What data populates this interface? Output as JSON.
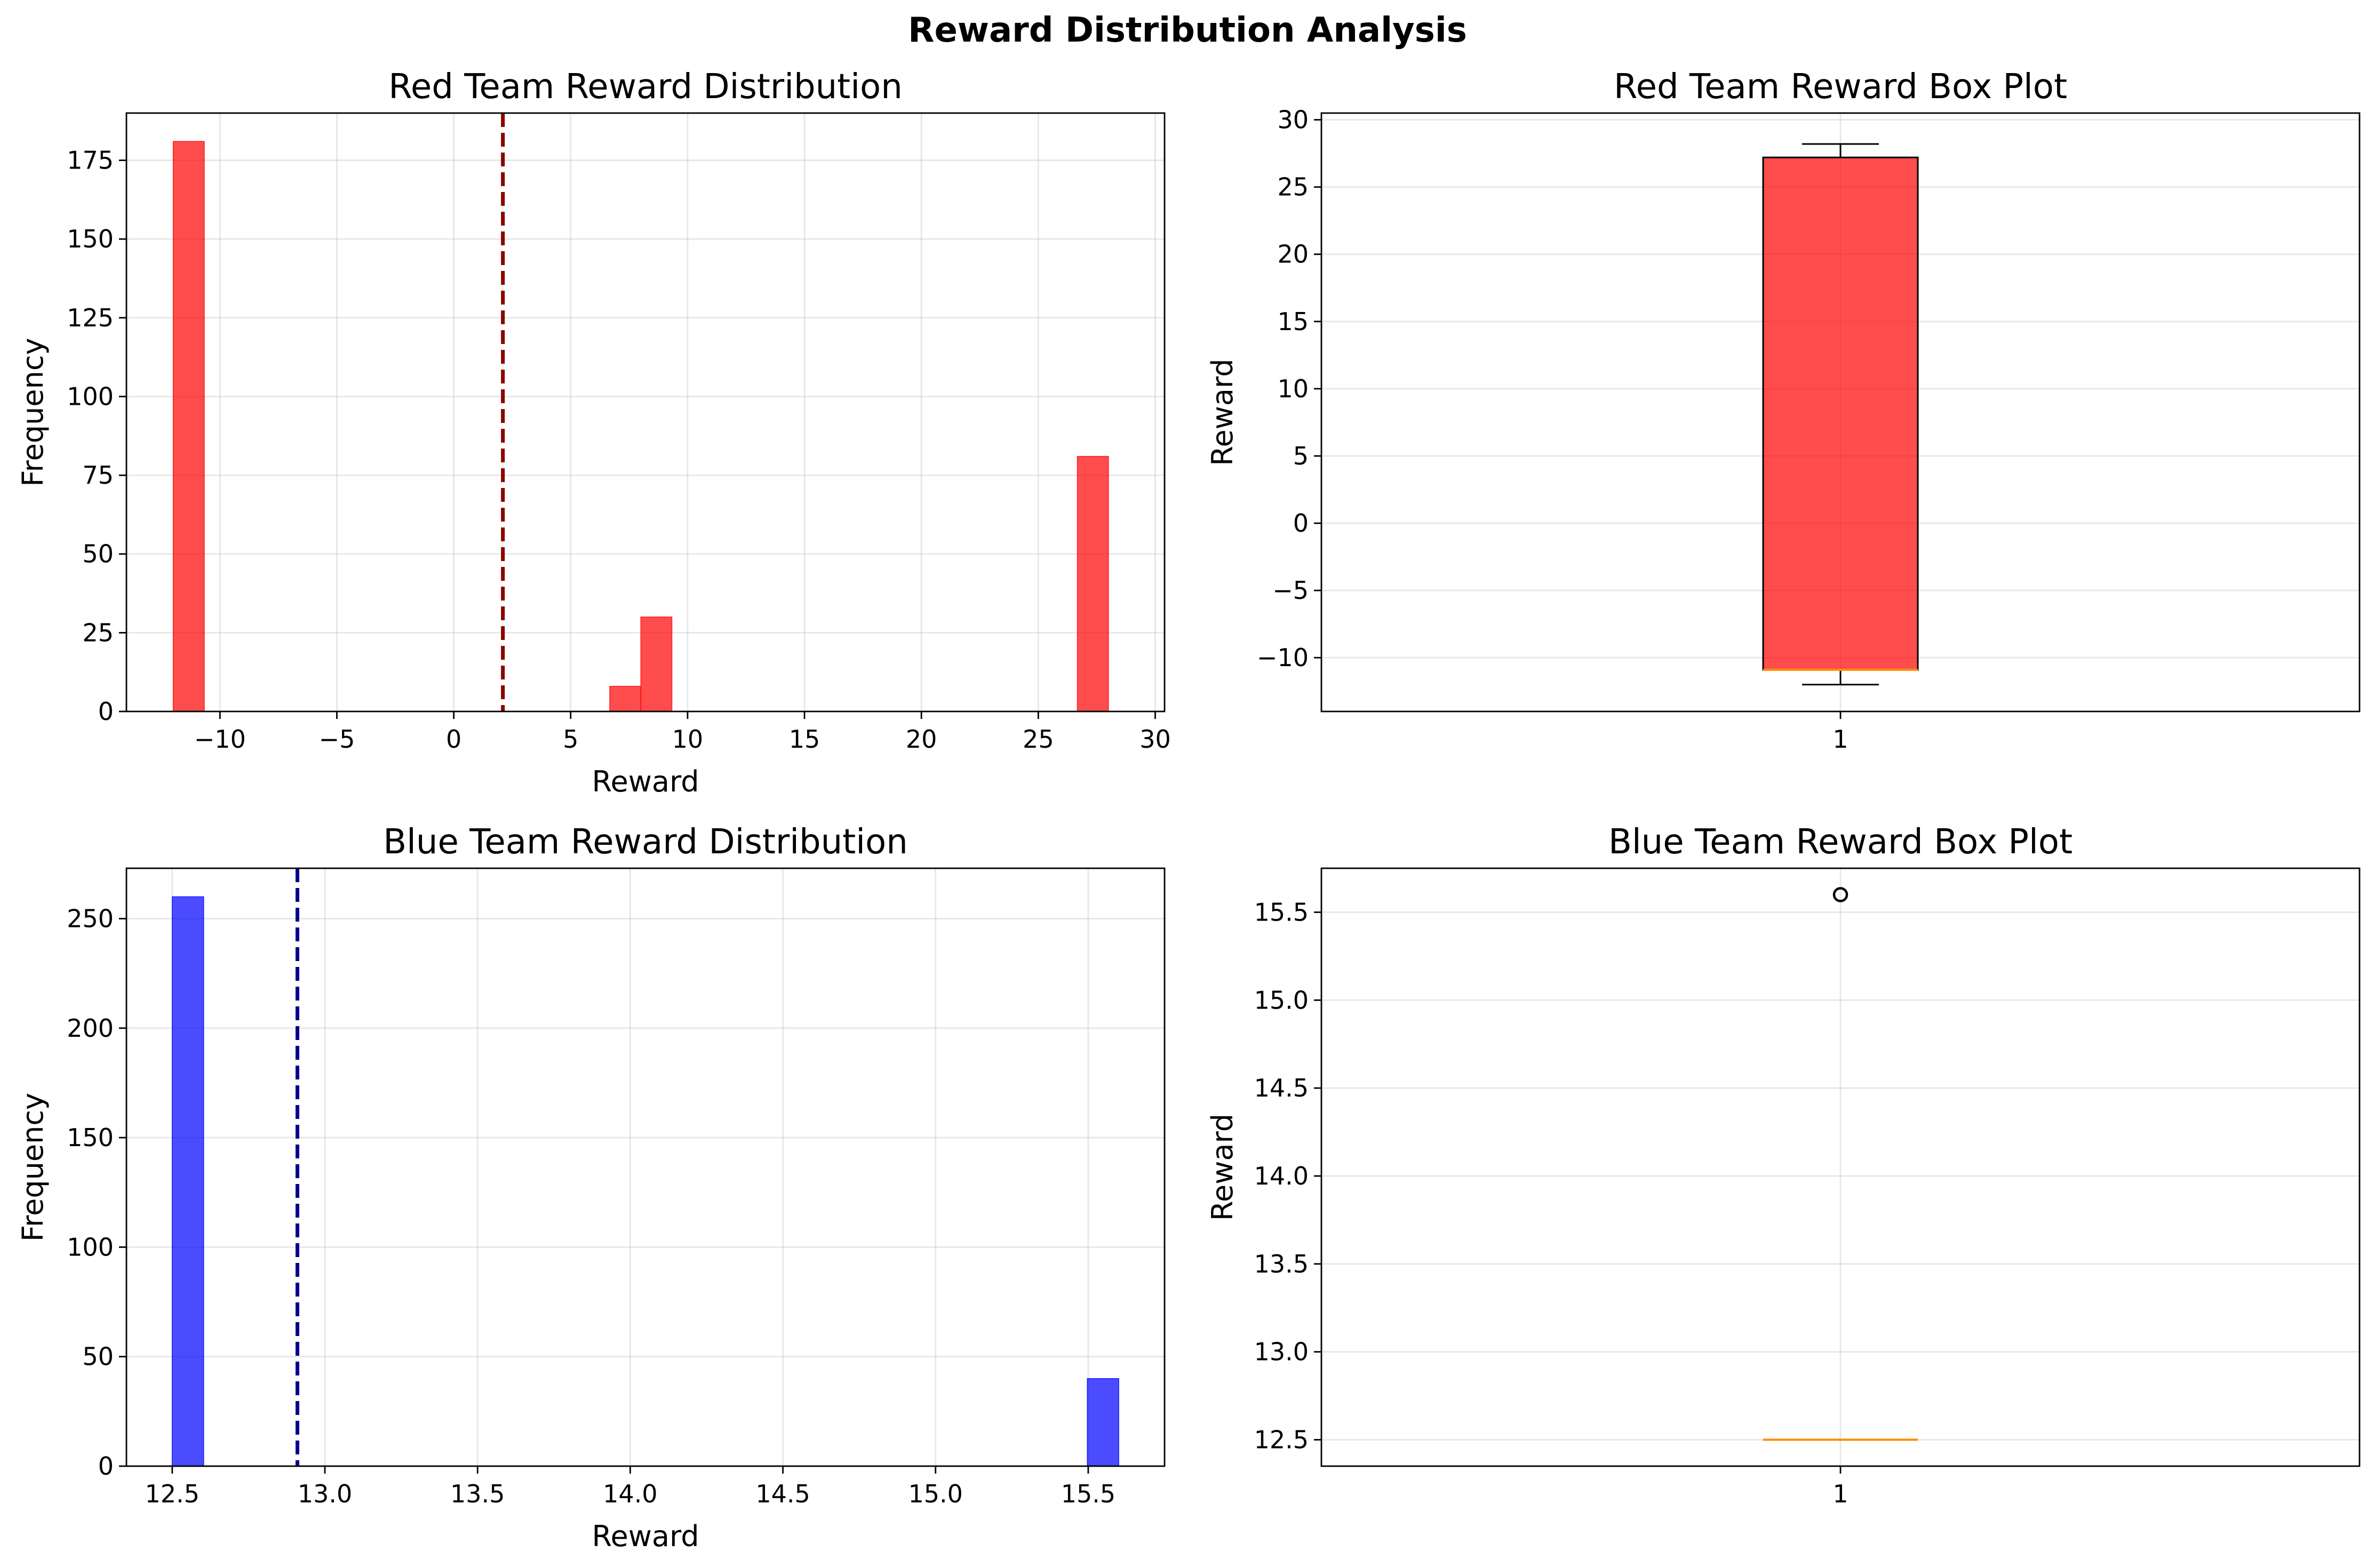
{
  "figure": {
    "suptitle": "Reward Distribution Analysis"
  },
  "chart_data": [
    {
      "type": "bar",
      "subtype": "histogram",
      "title": "Red Team Reward Distribution",
      "xlabel": "Reward",
      "ylabel": "Frequency",
      "xlim": [
        -14,
        30.4
      ],
      "ylim": [
        0,
        190
      ],
      "xticks": [
        -10,
        -5,
        0,
        5,
        10,
        15,
        20,
        25,
        30
      ],
      "xtick_labels": [
        "−10",
        "−5",
        "0",
        "5",
        "10",
        "15",
        "20",
        "25",
        "30"
      ],
      "yticks": [
        0,
        25,
        50,
        75,
        100,
        125,
        150,
        175
      ],
      "ytick_labels": [
        "0",
        "25",
        "50",
        "75",
        "100",
        "125",
        "150",
        "175"
      ],
      "bin_edges": [
        -12,
        -10.67,
        6.67,
        8.0,
        9.33,
        26.67,
        28.0
      ],
      "bars": [
        {
          "x0": -12.0,
          "x1": -10.67,
          "count": 181
        },
        {
          "x0": 6.67,
          "x1": 8.0,
          "count": 8
        },
        {
          "x0": 8.0,
          "x1": 9.33,
          "count": 30
        },
        {
          "x0": 26.67,
          "x1": 28.0,
          "count": 81
        }
      ],
      "mean_line": 2.1,
      "bar_color": "#ff0000",
      "mean_color": "#8b0000",
      "grid": true
    },
    {
      "type": "box",
      "title": "Red Team Reward Box Plot",
      "ylabel": "Reward",
      "ylim": [
        -14,
        30.5
      ],
      "yticks": [
        -10,
        -5,
        0,
        5,
        10,
        15,
        20,
        25,
        30
      ],
      "ytick_labels": [
        "−10",
        "−5",
        "0",
        "5",
        "10",
        "15",
        "20",
        "25",
        "30"
      ],
      "categories": [
        "1"
      ],
      "box": {
        "whisker_low": -12,
        "q1": -10.9,
        "median": -10.9,
        "q3": 27.2,
        "whisker_high": 28.2
      },
      "fill_color": "#ff0000",
      "median_color": "#ff8c00",
      "grid": true
    },
    {
      "type": "bar",
      "subtype": "histogram",
      "title": "Blue Team Reward Distribution",
      "xlabel": "Reward",
      "ylabel": "Frequency",
      "xlim": [
        12.35,
        15.75
      ],
      "ylim": [
        0,
        273
      ],
      "xticks": [
        12.5,
        13.0,
        13.5,
        14.0,
        14.5,
        15.0,
        15.5
      ],
      "xtick_labels": [
        "12.5",
        "13.0",
        "13.5",
        "14.0",
        "14.5",
        "15.0",
        "15.5"
      ],
      "yticks": [
        0,
        50,
        100,
        150,
        200,
        250
      ],
      "ytick_labels": [
        "0",
        "50",
        "100",
        "150",
        "200",
        "250"
      ],
      "bars": [
        {
          "x0": 12.5,
          "x1": 12.603,
          "count": 260
        },
        {
          "x0": 15.497,
          "x1": 15.6,
          "count": 40
        }
      ],
      "mean_line": 12.91,
      "bar_color": "#0000ff",
      "mean_color": "#00008b",
      "grid": true
    },
    {
      "type": "box",
      "title": "Blue Team Reward Box Plot",
      "ylabel": "Reward",
      "ylim": [
        12.35,
        15.75
      ],
      "yticks": [
        12.5,
        13.0,
        13.5,
        14.0,
        14.5,
        15.0,
        15.5
      ],
      "ytick_labels": [
        "12.5",
        "13.0",
        "13.5",
        "14.0",
        "14.5",
        "15.0",
        "15.5"
      ],
      "categories": [
        "1"
      ],
      "box": {
        "whisker_low": 12.5,
        "q1": 12.5,
        "median": 12.5,
        "q3": 12.5,
        "whisker_high": 12.5
      },
      "outliers": [
        15.6
      ],
      "fill_color": "#0000ff",
      "median_color": "#ff8c00",
      "grid": true
    }
  ]
}
